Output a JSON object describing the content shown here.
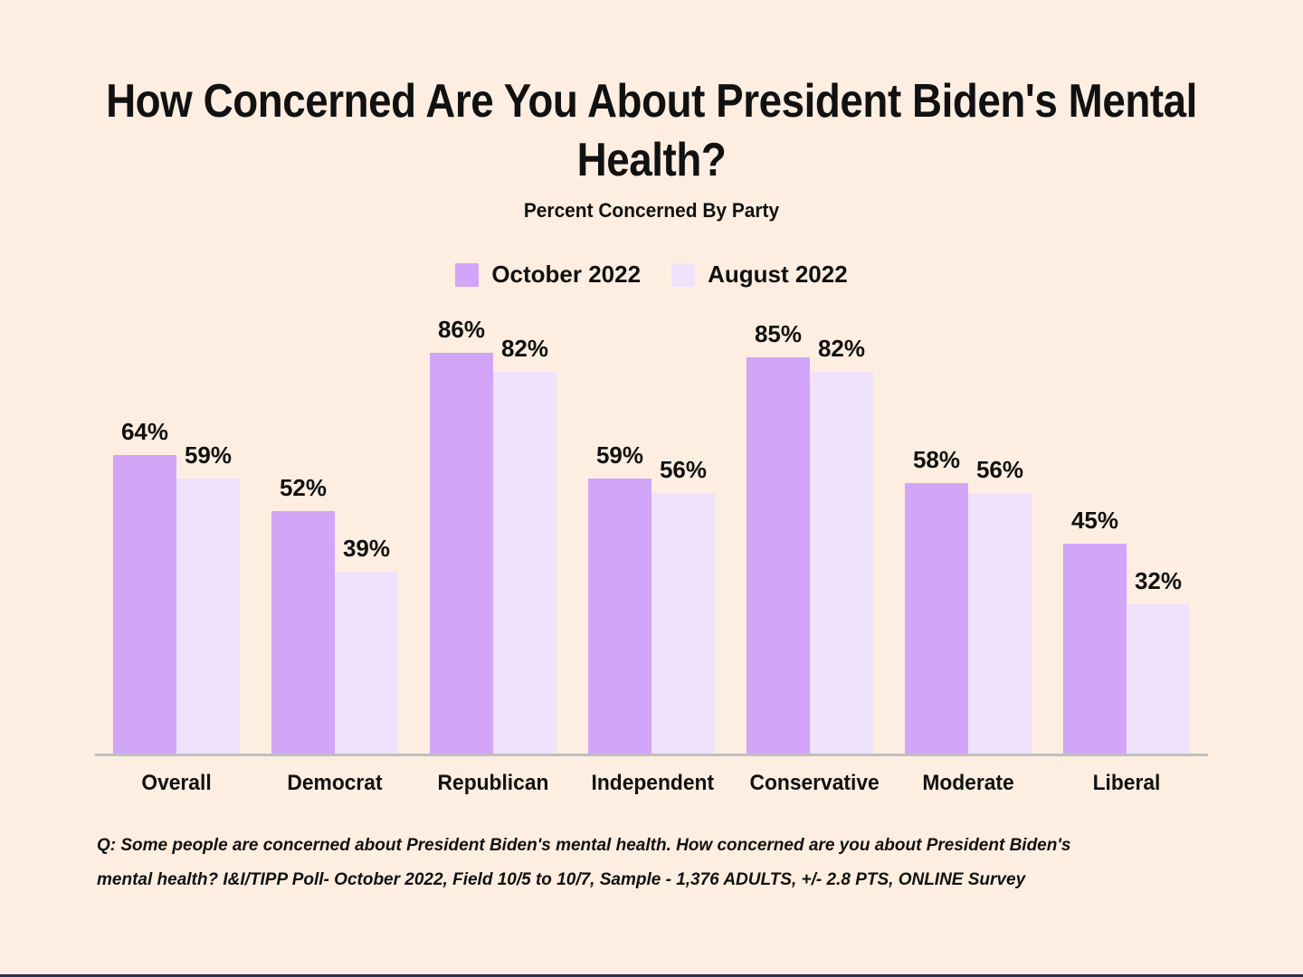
{
  "page": {
    "background_color": "#fdeee1",
    "bottom_bar_color": "#2b3154",
    "axis_line_color": "#bfbfbf",
    "text_color": "#111111"
  },
  "header": {
    "title": "How Concerned Are You About President Biden's Mental Health?",
    "subtitle": "Percent Concerned By Party"
  },
  "chart_data": {
    "type": "bar",
    "title": "How Concerned Are You About President Biden's Mental Health?",
    "subtitle": "Percent Concerned By Party",
    "categories": [
      "Overall",
      "Democrat",
      "Republican",
      "Independent",
      "Conservative",
      "Moderate",
      "Liberal"
    ],
    "series": [
      {
        "name": "October 2022",
        "color": "#d2a5f8",
        "values": [
          64,
          52,
          86,
          59,
          85,
          58,
          45
        ]
      },
      {
        "name": "August 2022",
        "color": "#f0e2fc",
        "values": [
          59,
          39,
          82,
          56,
          82,
          56,
          32
        ]
      }
    ],
    "value_suffix": "%",
    "data_labels": true,
    "xlabel": "",
    "ylabel": "",
    "ylim": [
      0,
      100
    ],
    "grid": false,
    "legend_position": "top"
  },
  "footnote": {
    "line1": "Q: Some people are concerned about President Biden's mental health. How concerned are you about President Biden's",
    "line2": "mental health? I&I/TIPP Poll- October 2022, Field 10/5 to 10/7, Sample - 1,376 ADULTS, +/- 2.8 PTS, ONLINE Survey"
  }
}
